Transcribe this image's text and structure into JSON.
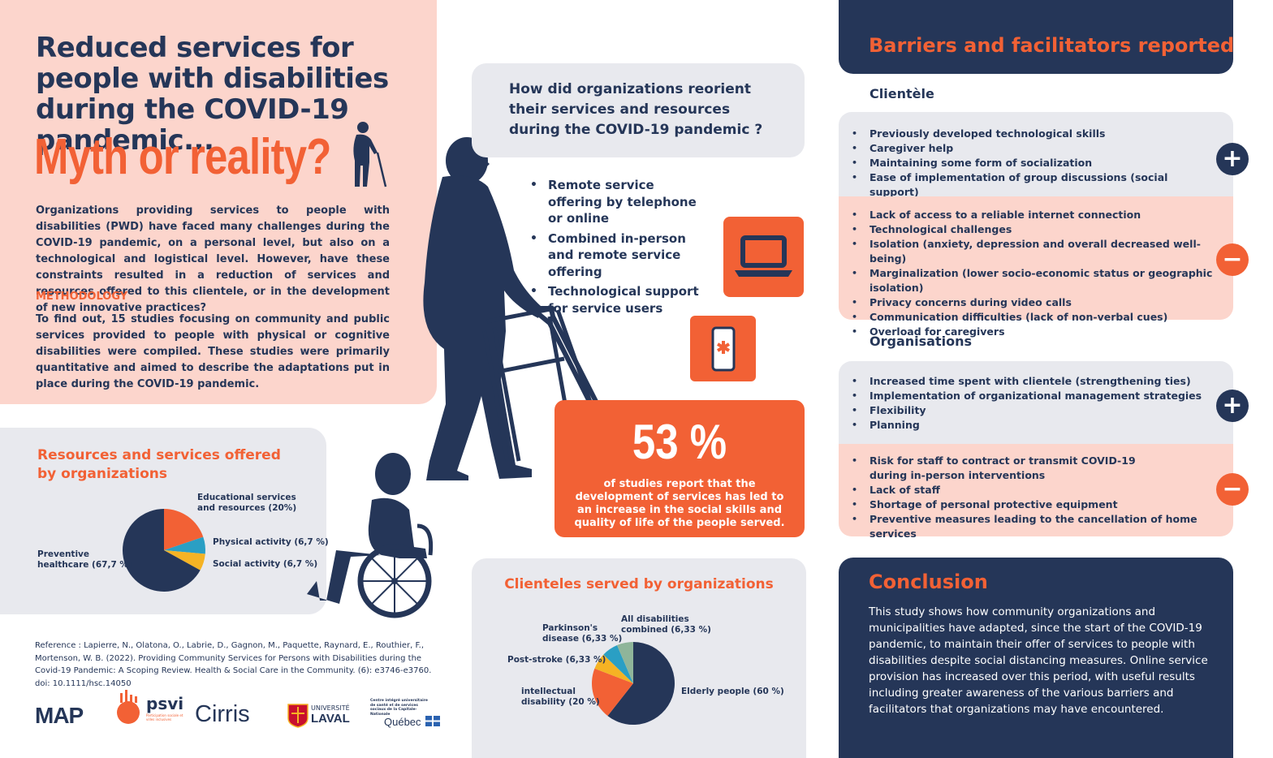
{
  "intro": {
    "title": "Reduced services for people with disabilities during the COVID-19 pandemic...",
    "headline": "Myth or reality?",
    "text": "Organizations providing services to people with disabilities (PWD) have faced many challenges during the COVID-19 pandemic, on a personal level, but also on a technological and logistical level. However, have these constraints resulted in a reduction of services and resources offered to this clientele, or in the development of new innovative practices?",
    "methodology_title": "METHODOLOGY",
    "methodology_text": "To find out, 15 studies focusing on community and public services provided to people with physical or cognitive disabilities were compiled. These studies were primarily quantitative and aimed to describe the adaptations put in place during the COVID-19 pandemic."
  },
  "resources": {
    "title": "Resources and services offered by organizations"
  },
  "reference": "Reference : Lapierre, N., Olatona, O., Labrie, D., Gagnon, M., Paquette, Raynard, E., Routhier, F., Mortenson, W. B. (2022). Providing Community Services for Persons with Disabilities during the Covid-19 Pandemic: A Scoping Review. Health & Social Care in the Community. (6): e3746-e3760. doi: 10.1111/hsc.14050",
  "logos": {
    "map": "MAP",
    "psvi": "psvi",
    "psvi_sub": "Participation sociale et villes inclusives",
    "cirris": "Cirris",
    "laval_1": "UNIVERSITÉ",
    "laval_2": "LAVAL",
    "quebec_small": "Centre intégré universitaire de santé et de services sociaux de la Capitale-Nationale",
    "quebec": "Québec"
  },
  "question": {
    "title": "How did organizations reorient their services and resources during the COVID-19 pandemic ?",
    "items": [
      "Remote service offering by telephone or online",
      "Combined in-person and remote service offering",
      "Technological support for service users"
    ]
  },
  "stat": {
    "value": "53 %",
    "text": "of studies report that the development of services has led to an increase in the social skills and quality of life of the people served."
  },
  "clienteles": {
    "title": "Clienteles served by organizations"
  },
  "barriers": {
    "title": "Barriers and facilitators reported",
    "clientele_title": "Clientèle",
    "clientele_plus": [
      "Previously developed technological skills",
      "Caregiver help",
      "Maintaining some form of socialization",
      "Ease of implementation of group discussions (social support)"
    ],
    "clientele_minus": [
      "Lack of access to a reliable internet connection",
      "Technological challenges",
      "Isolation (anxiety, depression and overall decreased well-being)",
      "Marginalization (lower socio-economic status or geographic isolation)",
      "Privacy concerns during video calls",
      "Communication difficulties (lack of non-verbal cues)",
      "Overload for caregivers"
    ],
    "org_title": "Organisations",
    "org_plus": [
      "Increased time spent with clientele (strengthening ties)",
      "Implementation of organizational management strategies",
      "Flexibility",
      "Planning"
    ],
    "org_minus_first_1": "Risk for staff to contract or transmit COVID-19",
    "org_minus_first_2": "during in-person interventions",
    "org_minus": [
      "Lack of staff",
      "Shortage of personal protective equipment",
      "Preventive measures leading to the cancellation of home services"
    ],
    "plus_symbol": "+",
    "minus_symbol": "−"
  },
  "conclusion": {
    "title": "Conclusion",
    "text": "This study shows how community organizations and municipalities have adapted, since the start of the COVID-19 pandemic, to maintain their offer of services to people with disabilities despite social distancing measures. Online service provision has increased over this period, with useful results including greater awareness of the various barriers and facilitators that organizations may have encountered."
  },
  "colors": {
    "navy": "#253658",
    "orange": "#f26135",
    "pink": "#fcd5cc",
    "grey": "#e8e9ee",
    "teal": "#2a9fc4",
    "yellow": "#f5b324",
    "sage": "#8fb59a"
  },
  "chart_data": [
    {
      "type": "pie",
      "title": "Resources and services offered by organizations",
      "slices": [
        {
          "label_lines": [
            "Educational services",
            "and resources (20%)"
          ],
          "value": 20,
          "color": "#f26135"
        },
        {
          "label_lines": [
            "Physical activity (6,7 %)"
          ],
          "value": 6.7,
          "color": "#2a9fc4"
        },
        {
          "label_lines": [
            "Social activity (6,7 %)"
          ],
          "value": 6.7,
          "color": "#f5b324"
        },
        {
          "label_lines": [
            "Preventive",
            "healthcare (67,7 %)"
          ],
          "value": 67.7,
          "color": "#253658"
        }
      ]
    },
    {
      "type": "pie",
      "title": "Clienteles served by organizations",
      "slices": [
        {
          "label_lines": [
            "Elderly people (60 %)"
          ],
          "value": 60,
          "color": "#253658"
        },
        {
          "label_lines": [
            "intellectual",
            "disability (20 %)"
          ],
          "value": 20,
          "color": "#f26135"
        },
        {
          "label_lines": [
            "Post-stroke (6,33 %)"
          ],
          "value": 6.33,
          "color": "#f5b324"
        },
        {
          "label_lines": [
            "Parkinson's",
            "disease (6,33 %)"
          ],
          "value": 6.33,
          "color": "#2a9fc4"
        },
        {
          "label_lines": [
            "All disabilities",
            "combined (6,33 %)"
          ],
          "value": 6.33,
          "color": "#8fb59a"
        }
      ]
    }
  ]
}
